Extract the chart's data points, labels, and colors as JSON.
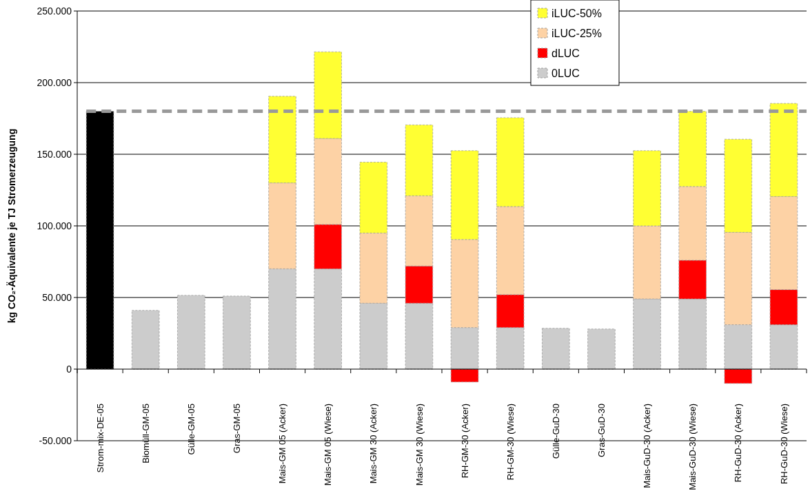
{
  "chart_data": {
    "type": "bar",
    "stacked": true,
    "ylabel": "kg CO₂-Äquivalente je TJ Stromerzeugung",
    "categories": [
      "Strom-mix-DE-05",
      "Biomüll-GM-05",
      "Gülle-GM-05",
      "Gras-GM-05",
      "Mais-GM 05 (Acker)",
      "Mais-GM 05 (Wiese)",
      "Mais-GM 30 (Acker)",
      "Mais-GM 30 (Wiese)",
      "RH-GM-30 (Acker)",
      "RH-GM-30 (Wiese)",
      "Gülle-GuD-30",
      "Gras-GuD-30",
      "Mais-GuD-30 (Acker)",
      "Mais-GuD-30 (Wiese)",
      "RH-GuD-30 (Acker)",
      "RH-GuD-30 (Wiese)"
    ],
    "series": [
      {
        "name": "0LUC",
        "color": "#cccccc",
        "colors": [
          "#000000",
          "#cccccc",
          "#cccccc",
          "#cccccc",
          "#cccccc",
          "#cccccc",
          "#cccccc",
          "#cccccc",
          "#cccccc",
          "#cccccc",
          "#cccccc",
          "#cccccc",
          "#cccccc",
          "#cccccc",
          "#cccccc",
          "#cccccc"
        ],
        "values": [
          180000,
          41000,
          51500,
          51000,
          70000,
          70000,
          46000,
          46000,
          29000,
          29000,
          28500,
          28000,
          49000,
          49000,
          31000,
          31000
        ]
      },
      {
        "name": "dLUC",
        "color": "#ff0000",
        "values": [
          null,
          null,
          null,
          null,
          null,
          31000,
          null,
          26000,
          -9000,
          23000,
          null,
          null,
          null,
          27000,
          -10000,
          24500
        ]
      },
      {
        "name": "iLUC-25%",
        "color": "#fdd2a5",
        "values": [
          null,
          null,
          null,
          null,
          60000,
          60000,
          49000,
          49000,
          61500,
          61500,
          null,
          null,
          51000,
          51500,
          64500,
          65000
        ]
      },
      {
        "name": "iLUC-50%",
        "color": "#ffff33",
        "values": [
          null,
          null,
          null,
          null,
          60500,
          60500,
          49500,
          49500,
          62000,
          62000,
          null,
          null,
          52500,
          52500,
          65000,
          65000
        ]
      }
    ],
    "ylim": [
      -50000,
      250000
    ],
    "yticks": [
      {
        "value": -50000,
        "label": "-50.000"
      },
      0,
      {
        "value": 50000,
        "label": "50.000"
      },
      {
        "value": 100000,
        "label": "100.000"
      },
      {
        "value": 150000,
        "label": "150.000"
      },
      {
        "value": 200000,
        "label": "200.000"
      },
      {
        "value": 250000,
        "label": "250.000"
      }
    ],
    "grid": "y",
    "ref_lines": [
      {
        "axis": "y",
        "value": 180000,
        "color": "#999999",
        "line_style": "dashed"
      }
    ],
    "legend": "top right"
  }
}
